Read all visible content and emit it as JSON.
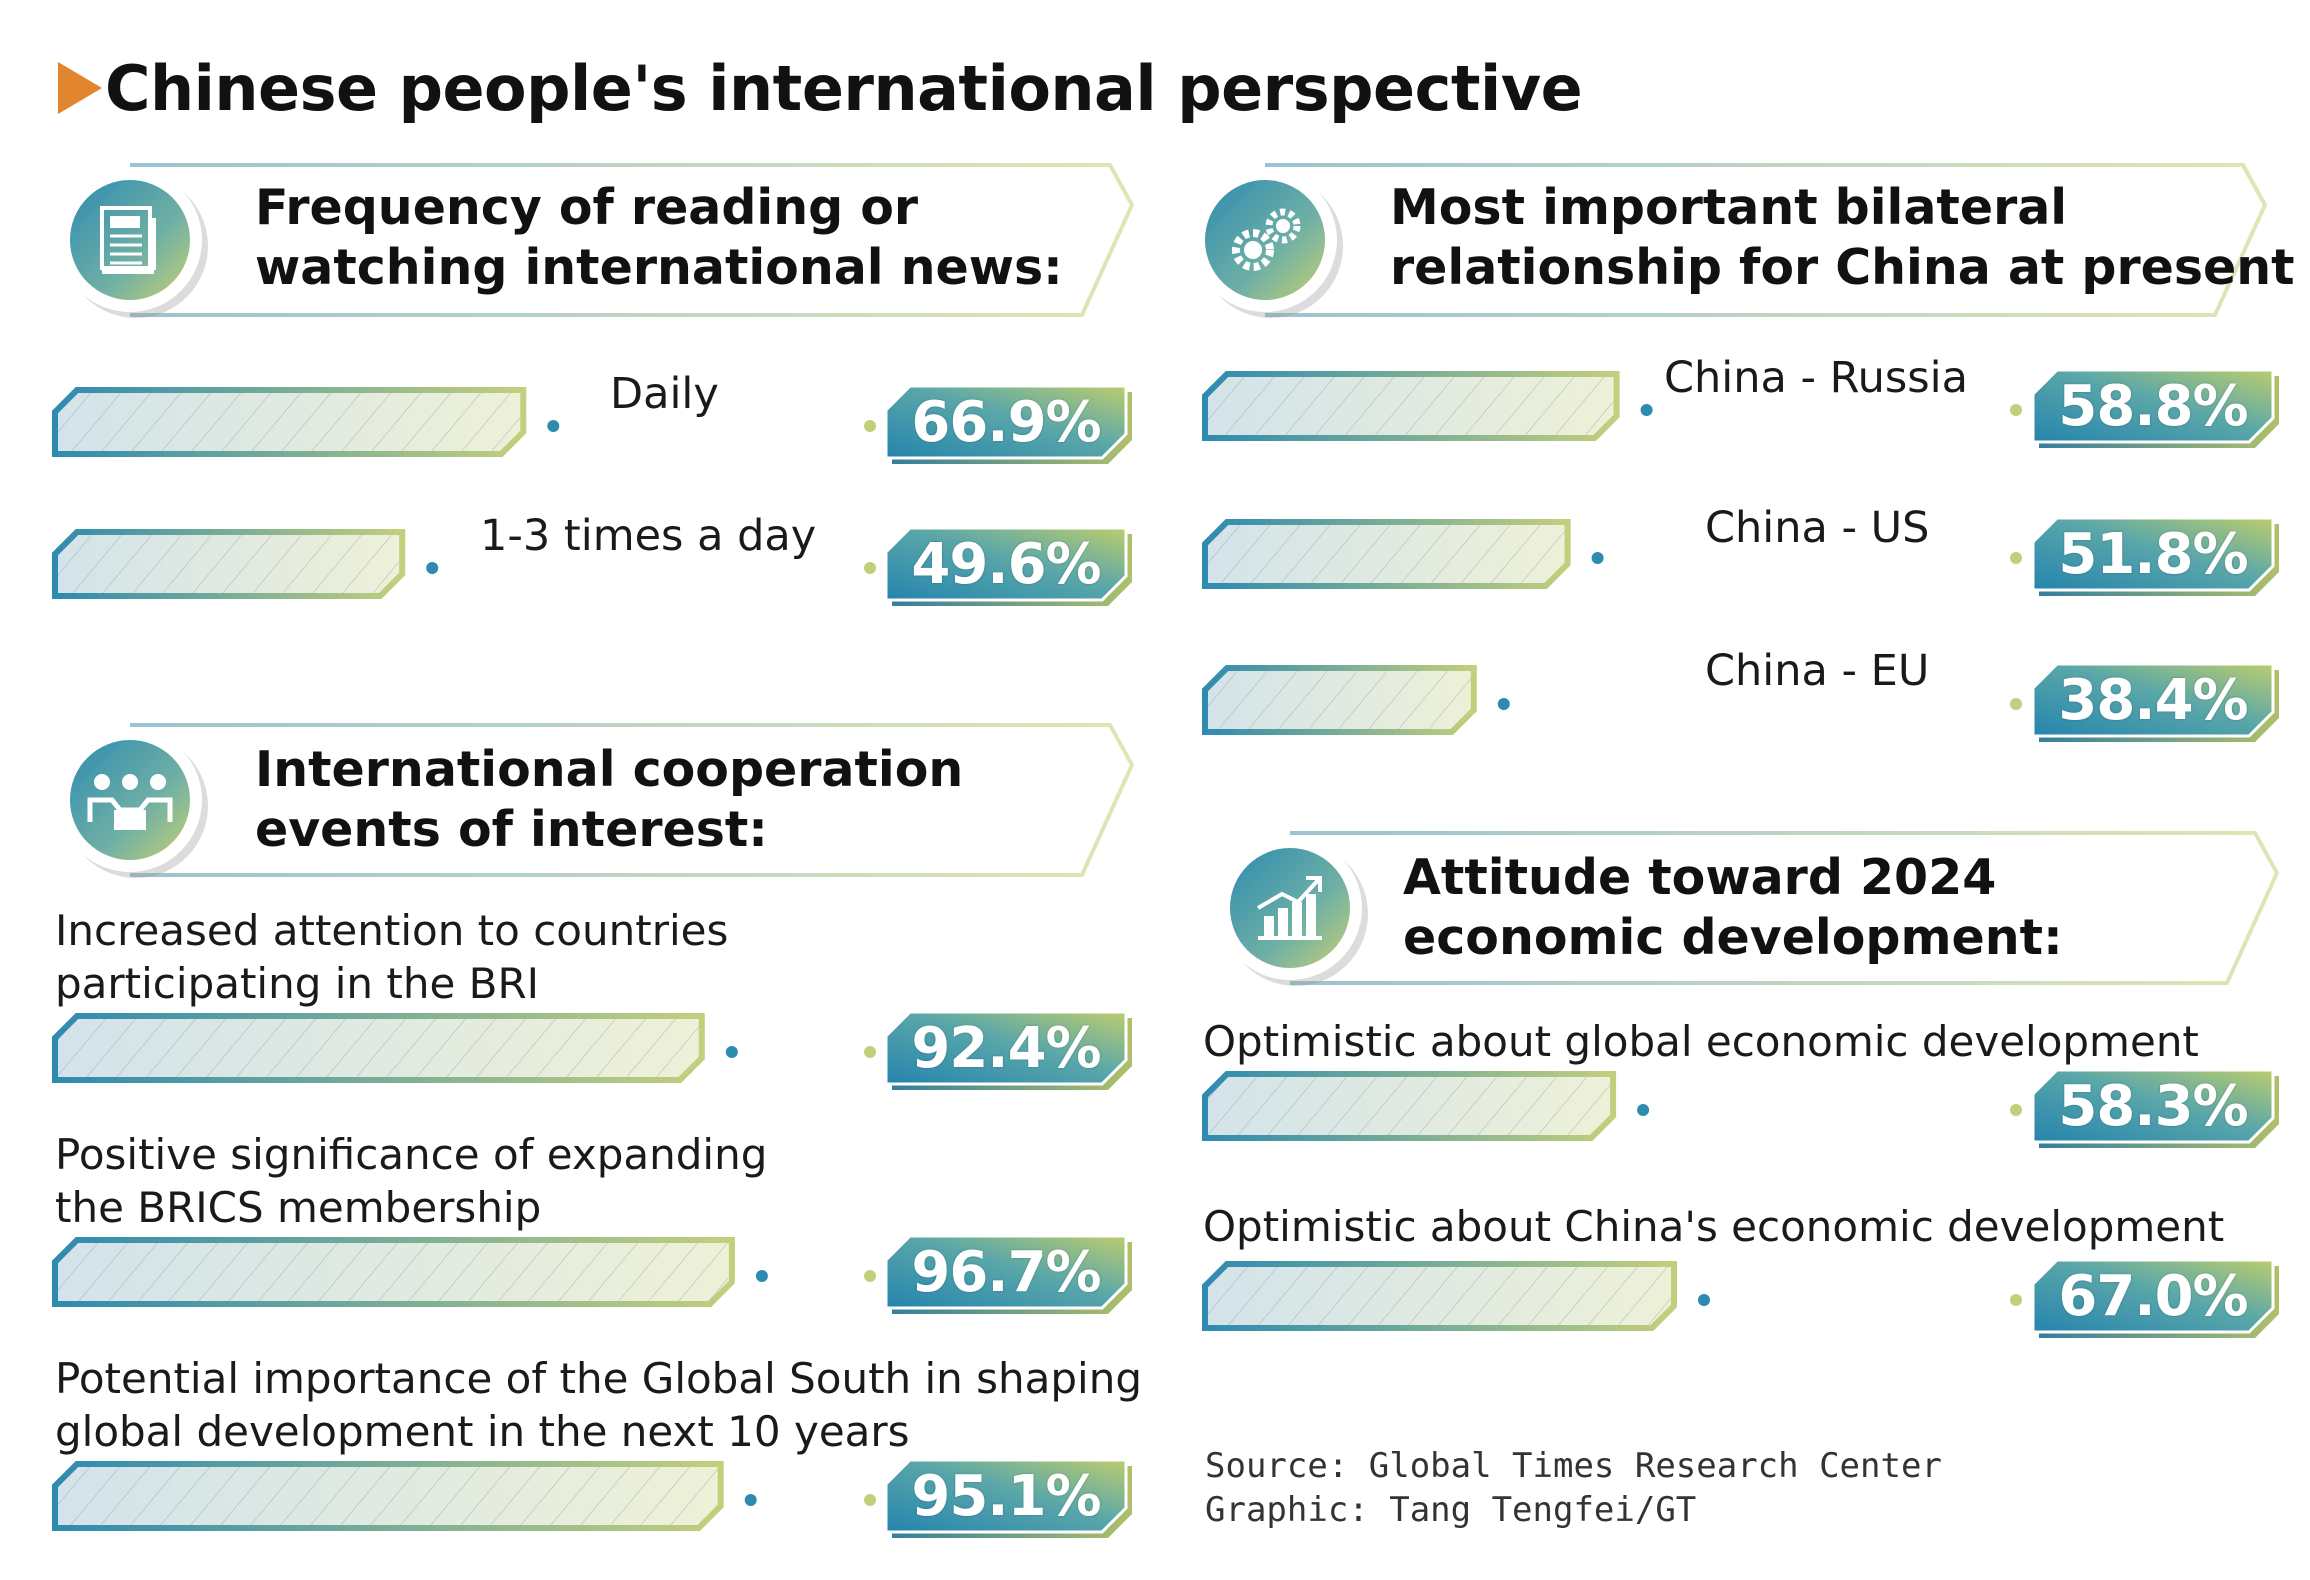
{
  "title": "Chinese people's international perspective",
  "sections": {
    "news": {
      "title_line1": "Frequency of reading or",
      "title_line2": "watching international news:",
      "icon": "newspaper-icon"
    },
    "bilateral": {
      "title_line1": "Most important bilateral",
      "title_line2": "relationship for China at present",
      "icon": "gears-icon"
    },
    "cooperation": {
      "title_line1": "International cooperation",
      "title_line2": "events of interest:",
      "icon": "people-group-icon"
    },
    "attitude": {
      "title_line1": "Attitude toward 2024",
      "title_line2": "economic development:",
      "icon": "growth-chart-icon"
    }
  },
  "chart_data": [
    {
      "type": "bar",
      "title": "Frequency of reading or watching international news:",
      "categories": [
        "Daily",
        "1-3 times a day"
      ],
      "values": [
        66.9,
        49.6
      ],
      "labels": [
        "66.9%",
        "49.6%"
      ]
    },
    {
      "type": "bar",
      "title": "Most important bilateral relationship for China at present",
      "categories": [
        "China - Russia",
        "China - US",
        "China - EU"
      ],
      "values": [
        58.8,
        51.8,
        38.4
      ],
      "labels": [
        "58.8%",
        "51.8%",
        "38.4%"
      ]
    },
    {
      "type": "bar",
      "title": "International cooperation events of interest:",
      "categories": [
        [
          "Increased attention to countries",
          "participating in the BRI"
        ],
        [
          "Positive significance of expanding",
          "the BRICS membership"
        ],
        [
          "Potential importance of the Global South in shaping",
          "global development in the next 10 years"
        ]
      ],
      "values": [
        92.4,
        96.7,
        95.1
      ],
      "labels": [
        "92.4%",
        "96.7%",
        "95.1%"
      ]
    },
    {
      "type": "bar",
      "title": "Attitude toward 2024 economic development:",
      "categories": [
        "Optimistic about global economic development",
        "Optimistic about China's economic development"
      ],
      "values": [
        58.3,
        67.0
      ],
      "labels": [
        "58.3%",
        "67.0%"
      ]
    }
  ],
  "footer": {
    "source": "Source: Global Times Research Center",
    "graphic": "Graphic: Tang Tengfei/GT"
  },
  "colors": {
    "accent_orange": "#e2852f",
    "teal": "#2e8bb0",
    "lime": "#c3cf7c"
  }
}
